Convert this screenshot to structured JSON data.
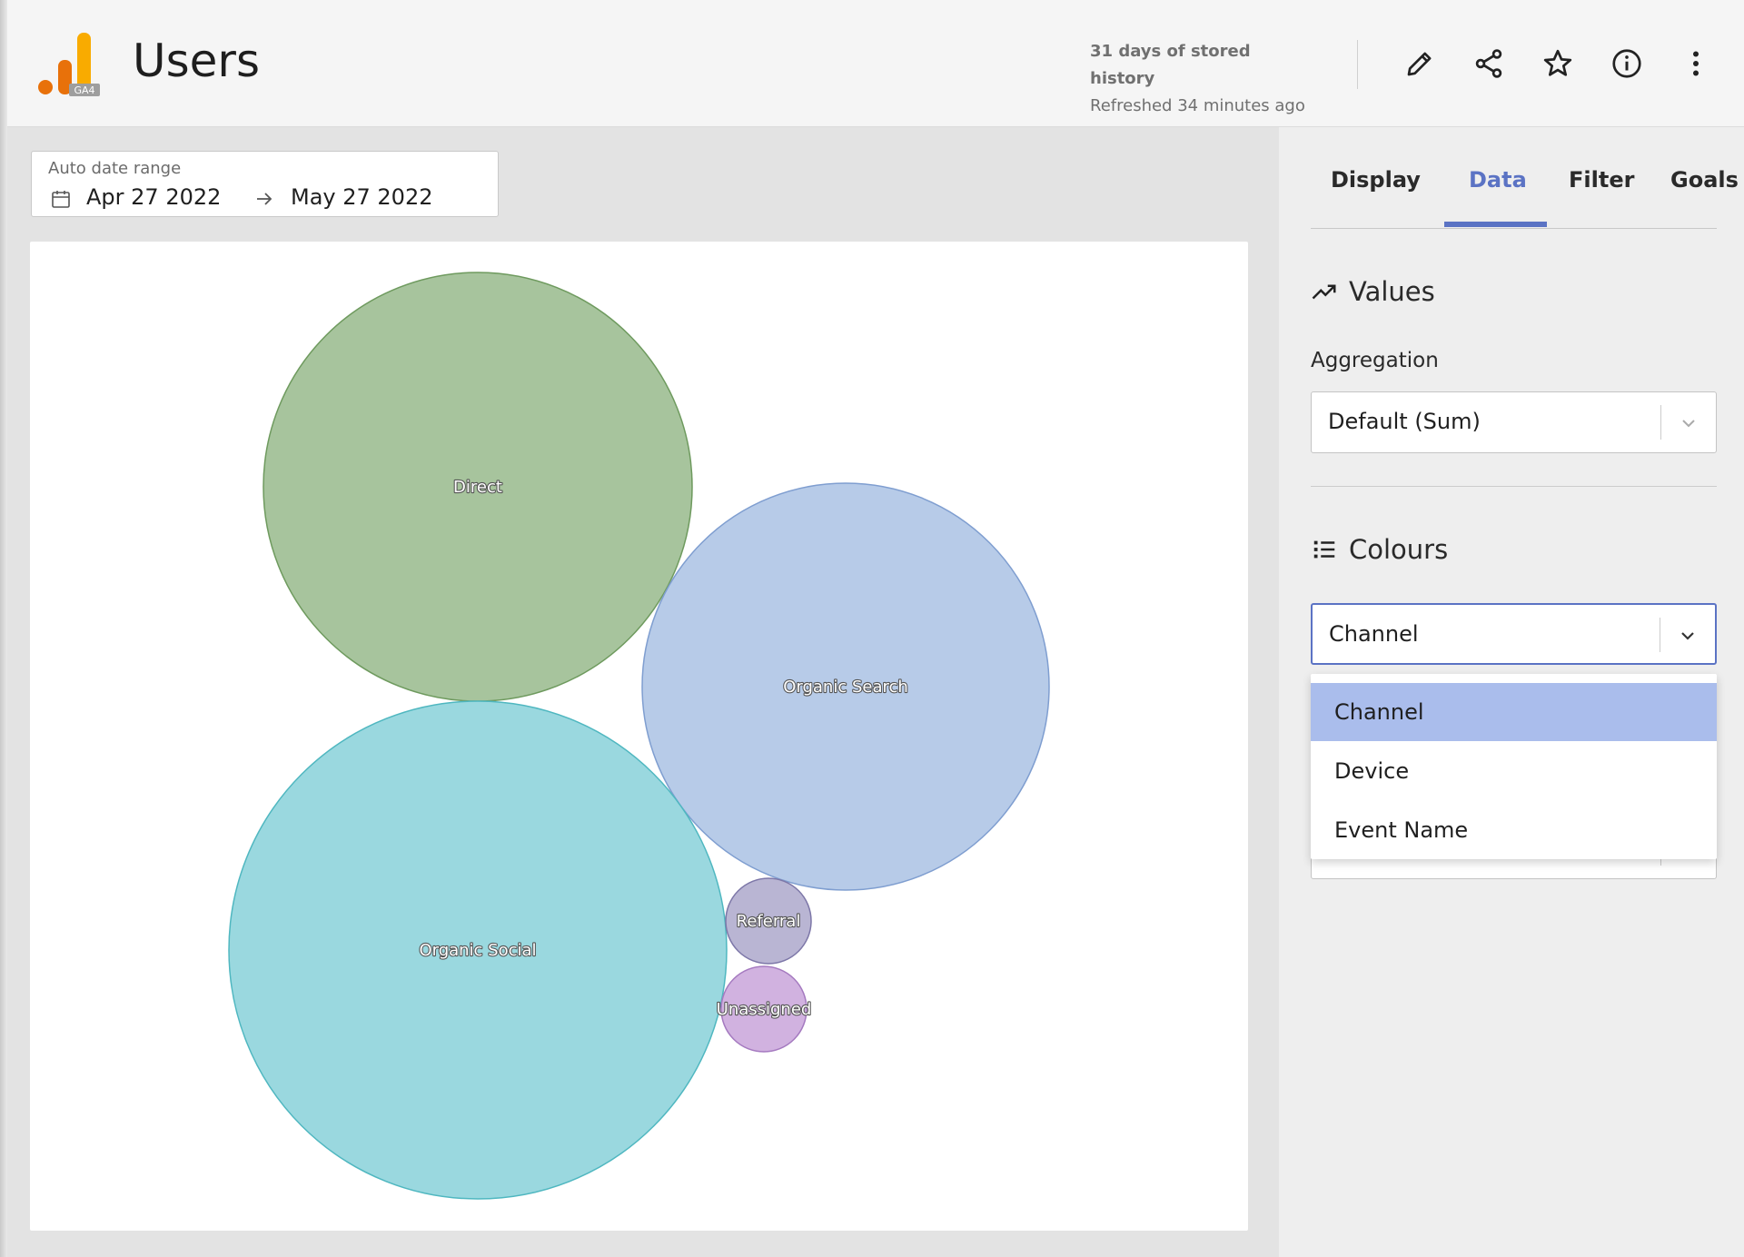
{
  "header": {
    "title": "Users",
    "history": "31 days of stored history",
    "refreshed": "Refreshed 34 minutes ago",
    "logo_badge": "GA4",
    "icons": [
      "edit-icon",
      "share-icon",
      "star-icon",
      "info-icon",
      "more-vertical-icon"
    ]
  },
  "date_range": {
    "label": "Auto date range",
    "from": "Apr 27 2022",
    "to": "May 27 2022"
  },
  "chart_data": {
    "type": "bubble",
    "series": [
      {
        "name": "Direct",
        "color": "#a7c49d",
        "stroke": "#6e9a5e"
      },
      {
        "name": "Organic Search",
        "color": "#b7cbe8",
        "stroke": "#7f9ed0"
      },
      {
        "name": "Organic Social",
        "color": "#9ad8df",
        "stroke": "#4fb7c0"
      },
      {
        "name": "Referral",
        "color": "#b9b5d3",
        "stroke": "#7d77a8"
      },
      {
        "name": "Unassigned",
        "color": "#d1b2e0",
        "stroke": "#a57ac0"
      }
    ]
  },
  "panel": {
    "tabs": [
      {
        "label": "Display"
      },
      {
        "label": "Data",
        "active": true
      },
      {
        "label": "Filter"
      },
      {
        "label": "Goals"
      }
    ],
    "values_title": "Values",
    "aggregation_label": "Aggregation",
    "aggregation_value": "Default (Sum)",
    "colours_title": "Colours",
    "colours_value": "Channel",
    "colours_options": [
      "Channel",
      "Device",
      "Event Name"
    ],
    "accent": "#5b73c4",
    "selected_option_bg": "#aabdec"
  }
}
